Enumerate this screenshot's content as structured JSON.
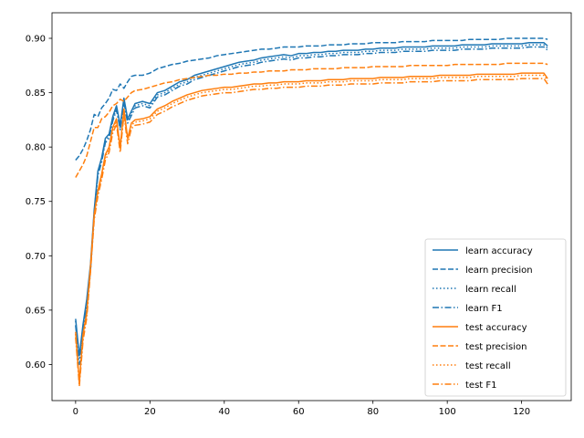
{
  "chart_data": {
    "type": "line",
    "title": "",
    "xlabel": "",
    "ylabel": "",
    "xlim": [
      -6.35,
      133.35
    ],
    "ylim": [
      0.5668,
      0.9235
    ],
    "xticks": [
      0,
      20,
      40,
      60,
      80,
      100,
      120
    ],
    "xtick_labels": [
      "0",
      "20",
      "40",
      "60",
      "80",
      "100",
      "120"
    ],
    "yticks": [
      0.6,
      0.65,
      0.7,
      0.75,
      0.8,
      0.85,
      0.9
    ],
    "ytick_labels": [
      "0.60",
      "0.65",
      "0.70",
      "0.75",
      "0.80",
      "0.85",
      "0.90"
    ],
    "grid": false,
    "legend_position": "lower right",
    "x": [
      0,
      1,
      2,
      3,
      4,
      5,
      6,
      7,
      8,
      9,
      10,
      11,
      12,
      13,
      14,
      15,
      16,
      18,
      20,
      22,
      24,
      26,
      28,
      30,
      32,
      34,
      36,
      38,
      40,
      42,
      44,
      46,
      48,
      50,
      52,
      54,
      56,
      58,
      60,
      62,
      64,
      66,
      68,
      70,
      72,
      74,
      76,
      78,
      80,
      82,
      84,
      86,
      88,
      90,
      92,
      94,
      96,
      98,
      100,
      102,
      104,
      106,
      108,
      110,
      112,
      114,
      116,
      118,
      120,
      122,
      124,
      126,
      127
    ],
    "series": [
      {
        "name": "learn accuracy",
        "color": "#1f77b4",
        "dash": "solid",
        "values": [
          0.642,
          0.608,
          0.637,
          0.66,
          0.692,
          0.742,
          0.778,
          0.79,
          0.808,
          0.812,
          0.828,
          0.838,
          0.82,
          0.845,
          0.826,
          0.833,
          0.84,
          0.842,
          0.84,
          0.85,
          0.852,
          0.856,
          0.86,
          0.862,
          0.866,
          0.868,
          0.87,
          0.872,
          0.874,
          0.876,
          0.878,
          0.879,
          0.88,
          0.882,
          0.883,
          0.884,
          0.885,
          0.884,
          0.886,
          0.886,
          0.887,
          0.887,
          0.888,
          0.888,
          0.889,
          0.889,
          0.889,
          0.89,
          0.89,
          0.891,
          0.891,
          0.891,
          0.892,
          0.892,
          0.892,
          0.892,
          0.893,
          0.893,
          0.893,
          0.893,
          0.894,
          0.894,
          0.894,
          0.894,
          0.895,
          0.895,
          0.895,
          0.895,
          0.895,
          0.896,
          0.896,
          0.896,
          0.893
        ]
      },
      {
        "name": "learn precision",
        "color": "#1f77b4",
        "dash": "dashed",
        "values": [
          0.788,
          0.792,
          0.798,
          0.806,
          0.816,
          0.83,
          0.828,
          0.836,
          0.84,
          0.845,
          0.853,
          0.852,
          0.858,
          0.854,
          0.86,
          0.865,
          0.866,
          0.866,
          0.868,
          0.872,
          0.874,
          0.876,
          0.877,
          0.879,
          0.88,
          0.881,
          0.882,
          0.884,
          0.885,
          0.886,
          0.887,
          0.888,
          0.889,
          0.89,
          0.89,
          0.891,
          0.892,
          0.892,
          0.892,
          0.893,
          0.893,
          0.893,
          0.894,
          0.894,
          0.894,
          0.895,
          0.895,
          0.895,
          0.896,
          0.896,
          0.896,
          0.896,
          0.897,
          0.897,
          0.897,
          0.897,
          0.898,
          0.898,
          0.898,
          0.898,
          0.898,
          0.899,
          0.899,
          0.899,
          0.899,
          0.899,
          0.9,
          0.9,
          0.9,
          0.9,
          0.9,
          0.9,
          0.899
        ]
      },
      {
        "name": "learn recall",
        "color": "#1f77b4",
        "dash": "dotted",
        "values": [
          0.64,
          0.606,
          0.634,
          0.657,
          0.689,
          0.74,
          0.776,
          0.788,
          0.806,
          0.81,
          0.826,
          0.836,
          0.818,
          0.843,
          0.824,
          0.831,
          0.838,
          0.84,
          0.838,
          0.848,
          0.85,
          0.854,
          0.858,
          0.86,
          0.864,
          0.866,
          0.868,
          0.87,
          0.872,
          0.874,
          0.876,
          0.877,
          0.878,
          0.88,
          0.881,
          0.882,
          0.883,
          0.882,
          0.884,
          0.884,
          0.885,
          0.885,
          0.886,
          0.886,
          0.887,
          0.887,
          0.887,
          0.888,
          0.888,
          0.889,
          0.889,
          0.889,
          0.89,
          0.89,
          0.89,
          0.89,
          0.891,
          0.891,
          0.891,
          0.891,
          0.892,
          0.892,
          0.892,
          0.892,
          0.893,
          0.893,
          0.893,
          0.893,
          0.893,
          0.894,
          0.894,
          0.894,
          0.891
        ]
      },
      {
        "name": "learn F1",
        "color": "#1f77b4",
        "dash": "dashdot",
        "values": [
          0.636,
          0.6,
          0.63,
          0.653,
          0.686,
          0.738,
          0.774,
          0.786,
          0.804,
          0.808,
          0.824,
          0.834,
          0.816,
          0.841,
          0.822,
          0.829,
          0.836,
          0.838,
          0.836,
          0.846,
          0.848,
          0.852,
          0.856,
          0.858,
          0.862,
          0.864,
          0.866,
          0.868,
          0.87,
          0.872,
          0.874,
          0.875,
          0.876,
          0.878,
          0.879,
          0.88,
          0.881,
          0.88,
          0.882,
          0.882,
          0.883,
          0.883,
          0.884,
          0.884,
          0.885,
          0.885,
          0.885,
          0.886,
          0.886,
          0.887,
          0.887,
          0.887,
          0.888,
          0.888,
          0.888,
          0.888,
          0.889,
          0.889,
          0.889,
          0.889,
          0.89,
          0.89,
          0.89,
          0.89,
          0.891,
          0.891,
          0.891,
          0.891,
          0.891,
          0.892,
          0.892,
          0.892,
          0.889
        ]
      },
      {
        "name": "test accuracy",
        "color": "#ff7f0e",
        "dash": "solid",
        "values": [
          0.63,
          0.584,
          0.628,
          0.648,
          0.69,
          0.738,
          0.76,
          0.775,
          0.793,
          0.8,
          0.818,
          0.826,
          0.8,
          0.835,
          0.808,
          0.822,
          0.825,
          0.826,
          0.828,
          0.835,
          0.838,
          0.842,
          0.845,
          0.848,
          0.85,
          0.852,
          0.853,
          0.854,
          0.855,
          0.855,
          0.856,
          0.857,
          0.858,
          0.858,
          0.859,
          0.859,
          0.86,
          0.86,
          0.86,
          0.861,
          0.861,
          0.861,
          0.862,
          0.862,
          0.862,
          0.863,
          0.863,
          0.863,
          0.863,
          0.864,
          0.864,
          0.864,
          0.864,
          0.865,
          0.865,
          0.865,
          0.865,
          0.866,
          0.866,
          0.866,
          0.866,
          0.866,
          0.867,
          0.867,
          0.867,
          0.867,
          0.867,
          0.867,
          0.868,
          0.868,
          0.868,
          0.868,
          0.863
        ]
      },
      {
        "name": "test precision",
        "color": "#ff7f0e",
        "dash": "dashed",
        "values": [
          0.772,
          0.778,
          0.784,
          0.792,
          0.805,
          0.818,
          0.818,
          0.826,
          0.828,
          0.832,
          0.838,
          0.84,
          0.844,
          0.842,
          0.846,
          0.85,
          0.852,
          0.853,
          0.855,
          0.857,
          0.859,
          0.86,
          0.862,
          0.863,
          0.864,
          0.865,
          0.866,
          0.866,
          0.867,
          0.867,
          0.868,
          0.868,
          0.869,
          0.869,
          0.87,
          0.87,
          0.87,
          0.871,
          0.871,
          0.871,
          0.872,
          0.872,
          0.872,
          0.872,
          0.873,
          0.873,
          0.873,
          0.873,
          0.874,
          0.874,
          0.874,
          0.874,
          0.874,
          0.875,
          0.875,
          0.875,
          0.875,
          0.875,
          0.875,
          0.876,
          0.876,
          0.876,
          0.876,
          0.876,
          0.876,
          0.876,
          0.877,
          0.877,
          0.877,
          0.877,
          0.877,
          0.877,
          0.876
        ]
      },
      {
        "name": "test recall",
        "color": "#ff7f0e",
        "dash": "dotted",
        "values": [
          0.628,
          0.582,
          0.626,
          0.646,
          0.688,
          0.736,
          0.758,
          0.773,
          0.791,
          0.798,
          0.816,
          0.824,
          0.798,
          0.833,
          0.806,
          0.82,
          0.823,
          0.824,
          0.826,
          0.833,
          0.836,
          0.84,
          0.843,
          0.846,
          0.848,
          0.85,
          0.851,
          0.852,
          0.853,
          0.853,
          0.854,
          0.855,
          0.856,
          0.856,
          0.857,
          0.857,
          0.858,
          0.858,
          0.858,
          0.859,
          0.859,
          0.859,
          0.86,
          0.86,
          0.86,
          0.861,
          0.861,
          0.861,
          0.861,
          0.862,
          0.862,
          0.862,
          0.862,
          0.863,
          0.863,
          0.863,
          0.863,
          0.864,
          0.864,
          0.864,
          0.864,
          0.864,
          0.865,
          0.865,
          0.865,
          0.865,
          0.865,
          0.865,
          0.866,
          0.866,
          0.866,
          0.866,
          0.861
        ]
      },
      {
        "name": "test F1",
        "color": "#ff7f0e",
        "dash": "dashdot",
        "values": [
          0.625,
          0.58,
          0.622,
          0.643,
          0.685,
          0.733,
          0.755,
          0.77,
          0.788,
          0.795,
          0.813,
          0.821,
          0.795,
          0.83,
          0.803,
          0.817,
          0.82,
          0.821,
          0.823,
          0.83,
          0.833,
          0.837,
          0.84,
          0.843,
          0.845,
          0.847,
          0.848,
          0.849,
          0.85,
          0.85,
          0.851,
          0.852,
          0.853,
          0.853,
          0.854,
          0.854,
          0.855,
          0.855,
          0.855,
          0.856,
          0.856,
          0.856,
          0.857,
          0.857,
          0.857,
          0.858,
          0.858,
          0.858,
          0.858,
          0.859,
          0.859,
          0.859,
          0.859,
          0.86,
          0.86,
          0.86,
          0.86,
          0.861,
          0.861,
          0.861,
          0.861,
          0.861,
          0.862,
          0.862,
          0.862,
          0.862,
          0.862,
          0.862,
          0.863,
          0.863,
          0.863,
          0.863,
          0.858
        ]
      }
    ]
  }
}
